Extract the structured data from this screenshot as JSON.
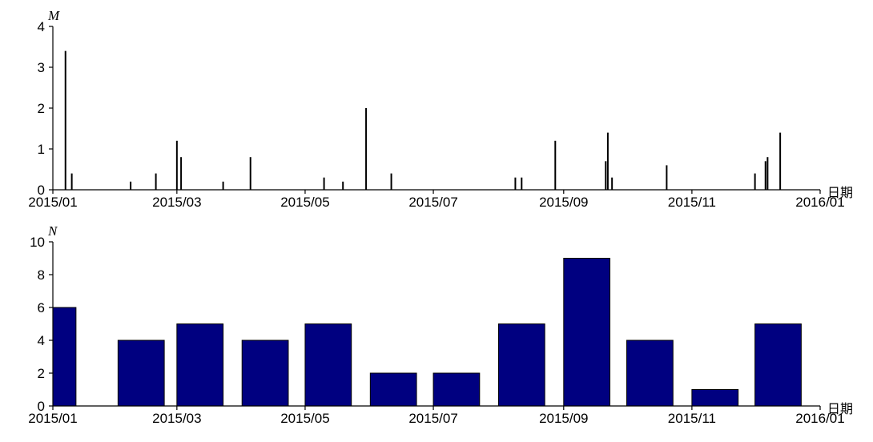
{
  "chart_data": [
    {
      "type": "bar",
      "style": "stem",
      "ylabel": "M",
      "xlabel": "日期",
      "ylim": [
        0,
        4
      ],
      "yticks": [
        0,
        1,
        2,
        3,
        4
      ],
      "xlim": [
        "2015-01-01",
        "2016-01-01"
      ],
      "xticks": [
        "2015/01",
        "2015/03",
        "2015/05",
        "2015/07",
        "2015/09",
        "2015/11",
        "2016/01"
      ],
      "xtick_dates": [
        "2015-01-01",
        "2015-03-01",
        "2015-05-01",
        "2015-07-01",
        "2015-09-01",
        "2015-11-01",
        "2016-01-01"
      ],
      "color": "#000000",
      "points": [
        {
          "date": "2015-01-07",
          "value": 3.4
        },
        {
          "date": "2015-01-10",
          "value": 0.4
        },
        {
          "date": "2015-02-07",
          "value": 0.2
        },
        {
          "date": "2015-02-19",
          "value": 0.4
        },
        {
          "date": "2015-03-01",
          "value": 1.2
        },
        {
          "date": "2015-03-03",
          "value": 0.8
        },
        {
          "date": "2015-03-23",
          "value": 0.2
        },
        {
          "date": "2015-04-05",
          "value": 0.8
        },
        {
          "date": "2015-05-10",
          "value": 0.3
        },
        {
          "date": "2015-05-19",
          "value": 0.2
        },
        {
          "date": "2015-05-30",
          "value": 2.0
        },
        {
          "date": "2015-06-11",
          "value": 0.4
        },
        {
          "date": "2015-08-09",
          "value": 0.3
        },
        {
          "date": "2015-08-12",
          "value": 0.3
        },
        {
          "date": "2015-08-28",
          "value": 1.2
        },
        {
          "date": "2015-09-21",
          "value": 0.7
        },
        {
          "date": "2015-09-22",
          "value": 1.4
        },
        {
          "date": "2015-09-24",
          "value": 0.3
        },
        {
          "date": "2015-10-20",
          "value": 0.6
        },
        {
          "date": "2015-12-01",
          "value": 0.4
        },
        {
          "date": "2015-12-06",
          "value": 0.7
        },
        {
          "date": "2015-12-07",
          "value": 0.8
        },
        {
          "date": "2015-12-13",
          "value": 1.4
        }
      ]
    },
    {
      "type": "bar",
      "ylabel": "N",
      "xlabel": "日期",
      "ylim": [
        0,
        10
      ],
      "yticks": [
        0,
        2,
        4,
        6,
        8,
        10
      ],
      "xlim": [
        "2015-01-01",
        "2016-01-01"
      ],
      "xticks": [
        "2015/01",
        "2015/03",
        "2015/05",
        "2015/07",
        "2015/09",
        "2015/11",
        "2016/01"
      ],
      "xtick_dates": [
        "2015-01-01",
        "2015-03-01",
        "2015-05-01",
        "2015-07-01",
        "2015-09-01",
        "2015-11-01",
        "2016-01-01"
      ],
      "color": "#000080",
      "categories": [
        "2015/01",
        "2015/02",
        "2015/03",
        "2015/04",
        "2015/05",
        "2015/06",
        "2015/07",
        "2015/08",
        "2015/09",
        "2015/10",
        "2015/11",
        "2015/12"
      ],
      "bar_starts": [
        "2015-01-01",
        "2015-02-01",
        "2015-03-01",
        "2015-04-01",
        "2015-05-01",
        "2015-06-01",
        "2015-07-01",
        "2015-08-01",
        "2015-09-01",
        "2015-10-01",
        "2015-11-01",
        "2015-12-01"
      ],
      "bar_ends": [
        "2015-01-12",
        "2015-02-23",
        "2015-03-23",
        "2015-04-23",
        "2015-05-23",
        "2015-06-23",
        "2015-07-23",
        "2015-08-23",
        "2015-09-23",
        "2015-10-23",
        "2015-11-23",
        "2015-12-23"
      ],
      "values": [
        6,
        4,
        5,
        4,
        5,
        2,
        2,
        5,
        9,
        4,
        1,
        5
      ]
    }
  ]
}
